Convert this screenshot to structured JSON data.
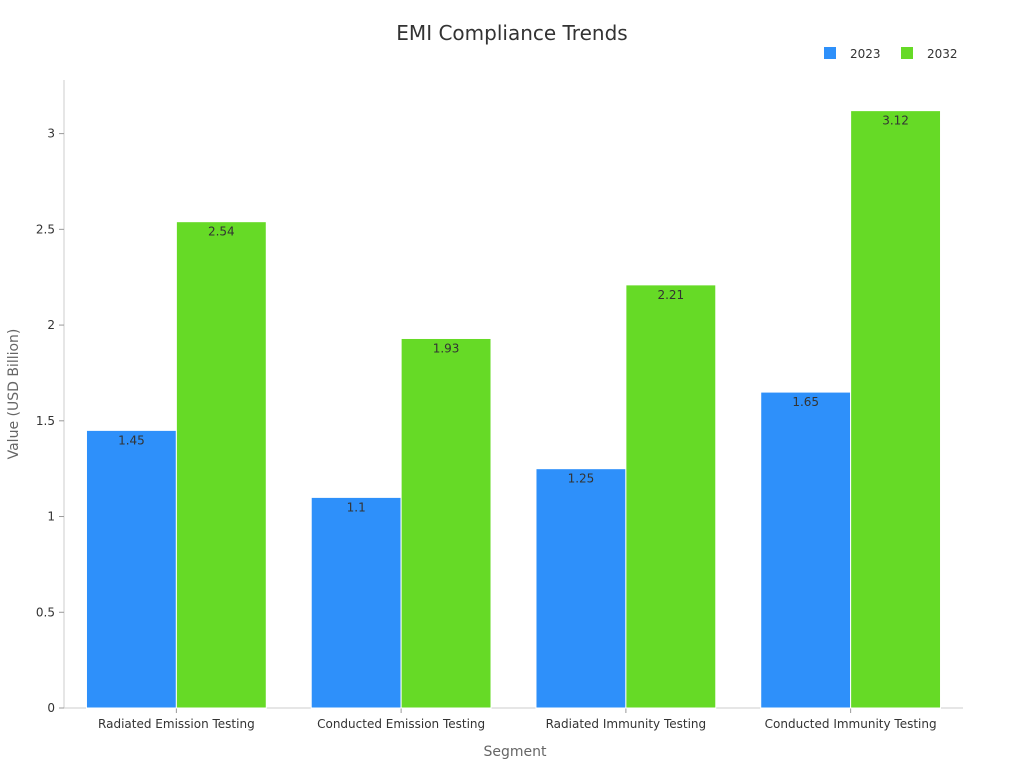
{
  "chart_data": {
    "type": "bar",
    "title": "EMI Compliance Trends",
    "xlabel": "Segment",
    "ylabel": "Value (USD Billion)",
    "categories": [
      "Radiated Emission Testing",
      "Conducted Emission Testing",
      "Radiated Immunity Testing",
      "Conducted Immunity Testing"
    ],
    "series": [
      {
        "name": "2023",
        "color": "#2E90FA",
        "values": [
          1.45,
          1.1,
          1.25,
          1.65
        ]
      },
      {
        "name": "2032",
        "color": "#66DA26",
        "values": [
          2.54,
          1.93,
          2.21,
          3.12
        ]
      }
    ],
    "ylim": [
      0,
      3.28
    ],
    "yticks": [
      "0",
      "0.5",
      "1",
      "1.5",
      "2",
      "2.5",
      "3"
    ],
    "legend_position": "top-right",
    "grid": false
  }
}
